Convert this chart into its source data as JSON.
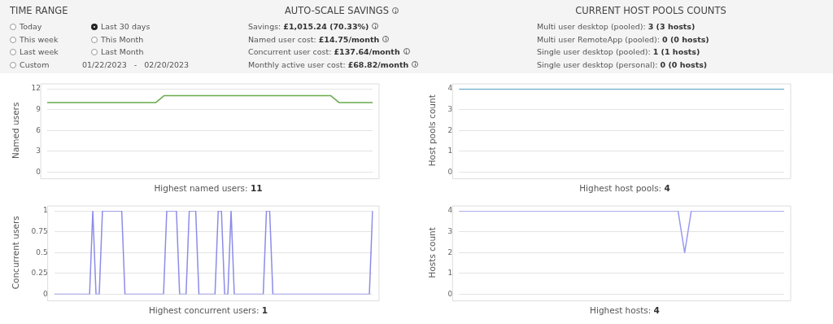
{
  "chart_data": [
    {
      "type": "other",
      "title": "TIME RANGE",
      "annotations": [
        "Today",
        "This week",
        "Last week",
        "Custom",
        "Last 30 days",
        "This Month",
        "Last Month",
        "01/22/2023   -   02/20/2023"
      ]
    },
    {
      "type": "other",
      "title": "AUTO-SCALE SAVINGS",
      "annotations": [
        "Savings: £1,015.24 (70.33%)",
        "Named user cost: £14.75/month",
        "Concurrent user cost: £137.64/month",
        "Monthly active user cost: £68.82/month"
      ]
    },
    {
      "type": "other",
      "title": "CURRENT HOST POOLS COUNTS",
      "annotations": [
        "Multi user desktop (pooled): 3 (3 hosts)",
        "Multi user RemoteApp (pooled): 0 (0 hosts)",
        "Single user desktop (pooled): 1 (1 hosts)",
        "Single user desktop (personal): 0 (0 hosts)"
      ]
    },
    {
      "type": "line",
      "ylabel": "Named users",
      "xlabel": "Highest named users: 11",
      "color": "#6aab4c",
      "grid": "y",
      "tick_labels": "y",
      "ylim": [
        0,
        12
      ],
      "yticks": [
        0,
        3,
        6,
        9,
        12
      ],
      "categories": [
        null,
        null,
        null,
        null,
        null,
        null,
        null,
        null,
        null,
        null,
        null,
        null,
        null,
        null,
        null,
        null,
        null,
        null,
        null,
        null,
        null,
        null,
        null,
        null,
        null,
        null,
        null,
        null,
        null,
        null,
        null,
        null,
        null,
        null,
        null,
        null,
        null,
        null,
        null,
        null
      ],
      "values": [
        10,
        10,
        10,
        10,
        10,
        10,
        10,
        10,
        10,
        10,
        10,
        10,
        10,
        10,
        11,
        11,
        11,
        11,
        11,
        11,
        11,
        11,
        11,
        11,
        11,
        11,
        11,
        11,
        11,
        11,
        11,
        11,
        11,
        11,
        11,
        10,
        10,
        10,
        10,
        10
      ]
    },
    {
      "type": "line",
      "ylabel": "Host pools count",
      "xlabel": "Highest host pools: 4",
      "color": "#2a8db0",
      "grid": "y",
      "tick_labels": "y",
      "ylim": [
        0,
        4
      ],
      "yticks": [
        0,
        1,
        2,
        3,
        4
      ],
      "categories": [
        null,
        null,
        null,
        null,
        null,
        null,
        null,
        null,
        null,
        null
      ],
      "values": [
        4,
        4,
        4,
        4,
        4,
        4,
        4,
        4,
        4,
        4
      ]
    },
    {
      "type": "line",
      "ylabel": "Concurrent users",
      "xlabel": "Highest concurrent users: 1",
      "color": "#8c8ce8",
      "grid": "y",
      "tick_labels": "y",
      "ylim": [
        0,
        1
      ],
      "yticks": [
        0,
        0.25,
        0.5,
        0.75,
        1
      ],
      "categories": [
        null,
        null,
        null,
        null,
        null,
        null,
        null,
        null,
        null,
        null,
        null,
        null,
        null,
        null,
        null,
        null,
        null,
        null,
        null,
        null,
        null,
        null,
        null,
        null,
        null,
        null,
        null,
        null,
        null,
        null,
        null,
        null,
        null,
        null,
        null,
        null,
        null,
        null,
        null,
        null,
        null,
        null,
        null,
        null,
        null,
        null,
        null,
        null,
        null,
        null,
        null,
        null,
        null,
        null,
        null,
        null,
        null,
        null,
        null,
        null,
        null,
        null,
        null,
        null,
        null,
        null,
        null,
        null,
        null,
        null,
        null,
        null,
        null,
        null,
        null,
        null,
        null,
        null,
        null,
        null,
        null,
        null,
        null,
        null,
        null,
        null,
        null,
        null,
        null,
        null,
        null,
        null,
        null,
        null,
        null,
        null,
        null,
        null,
        null,
        null
      ],
      "values": [
        0,
        0,
        0,
        0,
        0,
        0,
        0,
        0,
        0,
        0,
        0,
        0,
        1,
        0,
        0,
        1,
        1,
        1,
        1,
        1,
        1,
        1,
        0,
        0,
        0,
        0,
        0,
        0,
        0,
        0,
        0,
        0,
        0,
        0,
        0,
        1,
        1,
        1,
        1,
        0,
        0,
        0,
        1,
        1,
        1,
        0,
        0,
        0,
        0,
        0,
        0,
        1,
        1,
        0,
        0,
        1,
        0,
        0,
        0,
        0,
        0,
        0,
        0,
        0,
        0,
        0,
        1,
        1,
        0,
        0,
        0,
        0,
        0,
        0,
        0,
        0,
        0,
        0,
        0,
        0,
        0,
        0,
        0,
        0,
        0,
        0,
        0,
        0,
        0,
        0,
        0,
        0,
        0,
        0,
        0,
        0,
        0,
        0,
        0,
        1
      ]
    },
    {
      "type": "line",
      "ylabel": "Hosts count",
      "xlabel": "Highest hosts: 4",
      "color": "#9a9aee",
      "grid": "y",
      "tick_labels": "y",
      "ylim": [
        0,
        4
      ],
      "yticks": [
        0,
        1,
        2,
        3,
        4
      ],
      "categories": [
        null,
        null,
        null,
        null,
        null,
        null,
        null,
        null,
        null,
        null,
        null,
        null,
        null,
        null,
        null,
        null,
        null,
        null,
        null,
        null,
        null,
        null,
        null,
        null,
        null,
        null,
        null,
        null,
        null,
        null,
        null,
        null,
        null,
        null,
        null,
        null,
        null,
        null,
        null,
        null,
        null,
        null,
        null,
        null,
        null,
        null,
        null,
        null,
        null,
        null
      ],
      "values": [
        4,
        4,
        4,
        4,
        4,
        4,
        4,
        4,
        4,
        4,
        4,
        4,
        4,
        4,
        4,
        4,
        4,
        4,
        4,
        4,
        4,
        4,
        4,
        4,
        4,
        4,
        4,
        4,
        4,
        4,
        4,
        4,
        4,
        4,
        2,
        4,
        4,
        4,
        4,
        4,
        4,
        4,
        4,
        4,
        4,
        4,
        4,
        4,
        4,
        4
      ]
    }
  ]
}
